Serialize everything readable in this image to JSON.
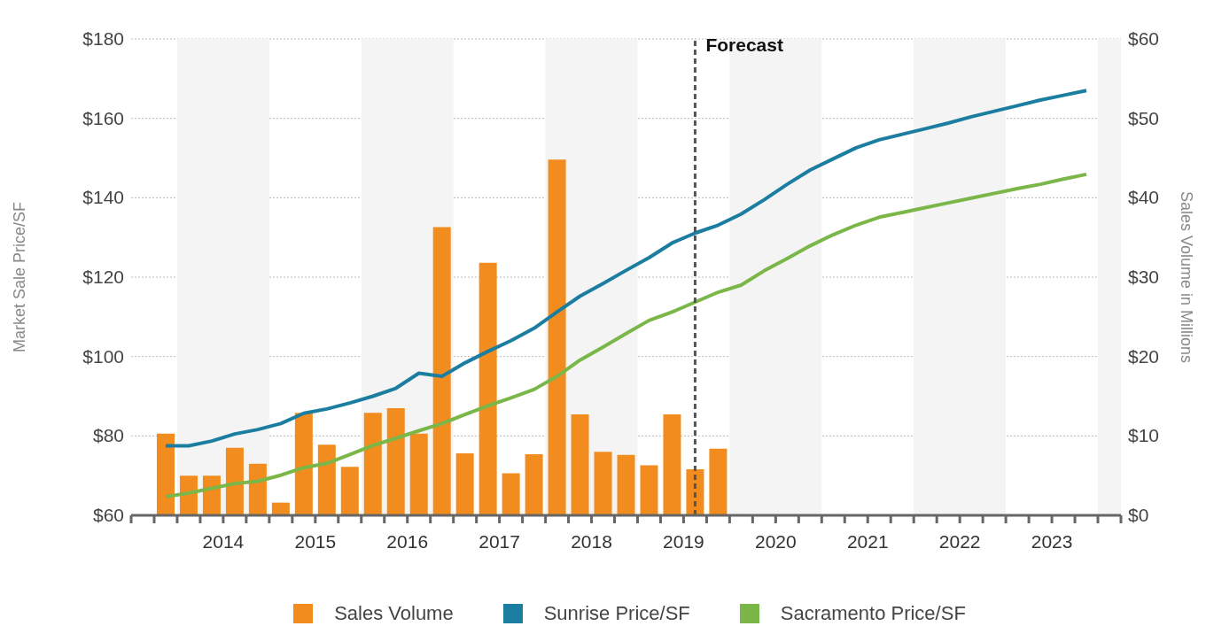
{
  "chart_data": {
    "type": "bar",
    "ylabel": "Market Sale Price/SF",
    "y2label": "Sales Volume in Millions",
    "x": [
      2013.875,
      2014.125,
      2014.375,
      2014.625,
      2014.875,
      2015.125,
      2015.375,
      2015.625,
      2015.875,
      2016.125,
      2016.375,
      2016.625,
      2016.875,
      2017.125,
      2017.375,
      2017.625,
      2017.875,
      2018.125,
      2018.375,
      2018.625,
      2018.875,
      2019.125,
      2019.375,
      2019.625,
      2019.875,
      2020.125,
      2020.375,
      2020.625,
      2020.875,
      2021.125,
      2021.375,
      2021.625,
      2021.875,
      2022.125,
      2022.375,
      2022.625,
      2022.875,
      2023.125,
      2023.375,
      2023.625,
      2023.875
    ],
    "series": [
      {
        "name": "Sales Volume",
        "axis": "y2",
        "color": "#f28c1e",
        "values": [
          10.3,
          5.0,
          5.0,
          8.5,
          6.5,
          1.6,
          12.9,
          8.9,
          6.1,
          12.9,
          13.5,
          10.3,
          36.3,
          7.8,
          31.8,
          5.3,
          7.7,
          44.8,
          12.7,
          8.0,
          7.6,
          6.3,
          12.7,
          5.8,
          8.4,
          null,
          null,
          null,
          null,
          null,
          null,
          null,
          null,
          null,
          null,
          null,
          null,
          null,
          null,
          null,
          null
        ]
      },
      {
        "name": "Sunrise Price/SF",
        "type": "line",
        "color": "#1b7ea1",
        "values": [
          77.5,
          77.5,
          78.7,
          80.5,
          81.6,
          83.1,
          85.7,
          86.8,
          88.3,
          90.0,
          92.0,
          95.8,
          95.0,
          98.4,
          101.3,
          104.0,
          107.1,
          111.2,
          115.2,
          118.4,
          121.7,
          124.9,
          128.6,
          131.1,
          133.1,
          135.9,
          139.5,
          143.4,
          147.0,
          149.8,
          152.6,
          154.6,
          156.0,
          157.4,
          158.8,
          160.4,
          161.8,
          163.2,
          164.6,
          165.8,
          167.0
        ]
      },
      {
        "name": "Sacramento Price/SF",
        "type": "line",
        "color": "#7ab648",
        "values": [
          64.7,
          65.6,
          66.8,
          68.0,
          68.6,
          70.1,
          72.0,
          73.1,
          75.3,
          77.6,
          79.4,
          81.3,
          83.1,
          85.4,
          87.6,
          89.6,
          91.7,
          95.0,
          99.1,
          102.4,
          105.8,
          109.1,
          111.2,
          113.7,
          116.2,
          118.0,
          121.6,
          124.7,
          127.9,
          130.7,
          133.1,
          135.1,
          136.3,
          137.5,
          138.7,
          139.9,
          141.1,
          142.3,
          143.4,
          144.7,
          145.9
        ]
      }
    ],
    "xlim": [
      2013.5,
      2024.25
    ],
    "xticks": [
      {
        "value": 2013.5,
        "label": null
      },
      {
        "value": 2013.75,
        "label": null
      },
      {
        "value": 2014,
        "label": null
      },
      {
        "value": 2014.25,
        "label": null
      },
      {
        "value": 2014.5,
        "label": "2014"
      },
      {
        "value": 2014.75,
        "label": null
      },
      {
        "value": 2015,
        "label": null
      },
      {
        "value": 2015.25,
        "label": null
      },
      {
        "value": 2015.5,
        "label": "2015"
      },
      {
        "value": 2015.75,
        "label": null
      },
      {
        "value": 2016,
        "label": null
      },
      {
        "value": 2016.25,
        "label": null
      },
      {
        "value": 2016.5,
        "label": "2016"
      },
      {
        "value": 2016.75,
        "label": null
      },
      {
        "value": 2017,
        "label": null
      },
      {
        "value": 2017.25,
        "label": null
      },
      {
        "value": 2017.5,
        "label": "2017"
      },
      {
        "value": 2017.75,
        "label": null
      },
      {
        "value": 2018,
        "label": null
      },
      {
        "value": 2018.25,
        "label": null
      },
      {
        "value": 2018.5,
        "label": "2018"
      },
      {
        "value": 2018.75,
        "label": null
      },
      {
        "value": 2019,
        "label": null
      },
      {
        "value": 2019.25,
        "label": null
      },
      {
        "value": 2019.5,
        "label": "2019"
      },
      {
        "value": 2019.75,
        "label": null
      },
      {
        "value": 2020,
        "label": null
      },
      {
        "value": 2020.25,
        "label": null
      },
      {
        "value": 2020.5,
        "label": "2020"
      },
      {
        "value": 2020.75,
        "label": null
      },
      {
        "value": 2021,
        "label": null
      },
      {
        "value": 2021.25,
        "label": null
      },
      {
        "value": 2021.5,
        "label": "2021"
      },
      {
        "value": 2021.75,
        "label": null
      },
      {
        "value": 2022,
        "label": null
      },
      {
        "value": 2022.25,
        "label": null
      },
      {
        "value": 2022.5,
        "label": "2022"
      },
      {
        "value": 2022.75,
        "label": null
      },
      {
        "value": 2023,
        "label": null
      },
      {
        "value": 2023.25,
        "label": null
      },
      {
        "value": 2023.5,
        "label": "2023"
      },
      {
        "value": 2023.75,
        "label": null
      },
      {
        "value": 2024,
        "label": null
      },
      {
        "value": 2024.25,
        "label": null
      }
    ],
    "ylim": [
      60,
      180
    ],
    "yticks": [
      {
        "value": 60,
        "label": "$60"
      },
      {
        "value": 80,
        "label": "$80"
      },
      {
        "value": 100,
        "label": "$100"
      },
      {
        "value": 120,
        "label": "$120"
      },
      {
        "value": 140,
        "label": "$140"
      },
      {
        "value": 160,
        "label": "$160"
      },
      {
        "value": 180,
        "label": "$180"
      }
    ],
    "y2lim": [
      0,
      60
    ],
    "y2ticks": [
      {
        "value": 0,
        "label": "$0"
      },
      {
        "value": 10,
        "label": "$10"
      },
      {
        "value": 20,
        "label": "$20"
      },
      {
        "value": 30,
        "label": "$30"
      },
      {
        "value": 40,
        "label": "$40"
      },
      {
        "value": 50,
        "label": "$50"
      },
      {
        "value": 60,
        "label": "$60"
      }
    ],
    "ref_lines": [
      {
        "axis": "x",
        "value": 2019.625,
        "label": "Forecast",
        "color": "#555555",
        "line_style": "dashed"
      }
    ],
    "bands": [
      {
        "axis": "x",
        "from": 2014,
        "to": 2015,
        "color": "#f4f4f4"
      },
      {
        "axis": "x",
        "from": 2016,
        "to": 2017,
        "color": "#f4f4f4"
      },
      {
        "axis": "x",
        "from": 2018,
        "to": 2019,
        "color": "#f4f4f4"
      },
      {
        "axis": "x",
        "from": 2020,
        "to": 2021,
        "color": "#f4f4f4"
      },
      {
        "axis": "x",
        "from": 2022,
        "to": 2023,
        "color": "#f4f4f4"
      },
      {
        "axis": "x",
        "from": 2024,
        "to": 2024.25,
        "color": "#f4f4f4"
      }
    ],
    "grid": "y",
    "legend": "bottom"
  }
}
